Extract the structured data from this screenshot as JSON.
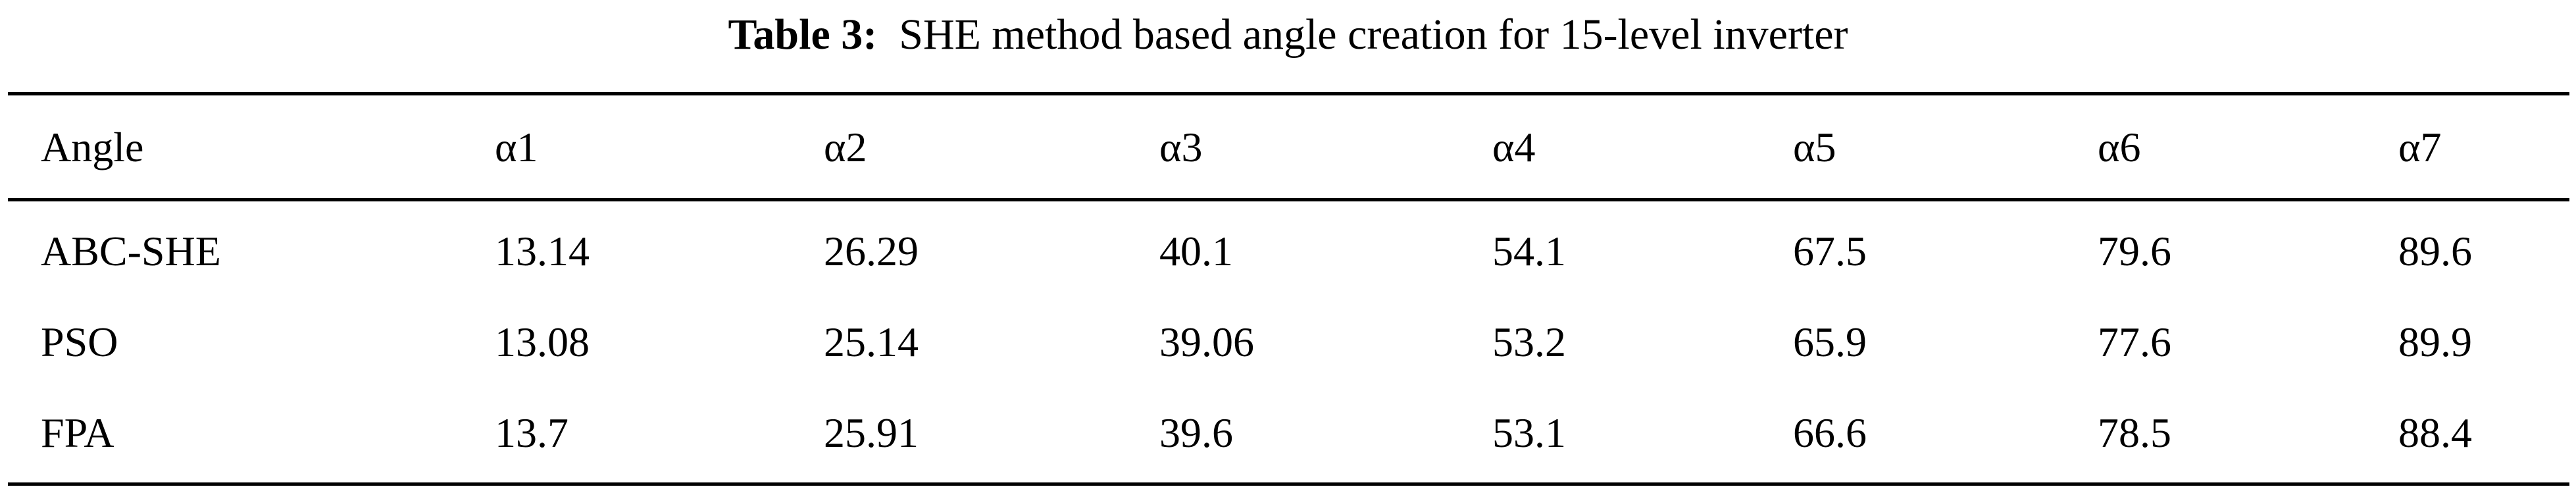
{
  "caption": {
    "label": "Table 3:",
    "text": "SHE method based angle creation for 15-level inverter"
  },
  "table": {
    "headers": [
      "Angle",
      "α1",
      "α2",
      "α3",
      "α4",
      "α5",
      "α6",
      "α7"
    ],
    "rows": [
      [
        "ABC-SHE",
        "13.14",
        "26.29",
        "40.1",
        "54.1",
        "67.5",
        "79.6",
        "89.6"
      ],
      [
        "PSO",
        "13.08",
        "25.14",
        "39.06",
        "53.2",
        "65.9",
        "77.6",
        "89.9"
      ],
      [
        "FPA",
        "13.7",
        "25.91",
        "39.6",
        "53.1",
        "66.6",
        "78.5",
        "88.4"
      ]
    ]
  }
}
